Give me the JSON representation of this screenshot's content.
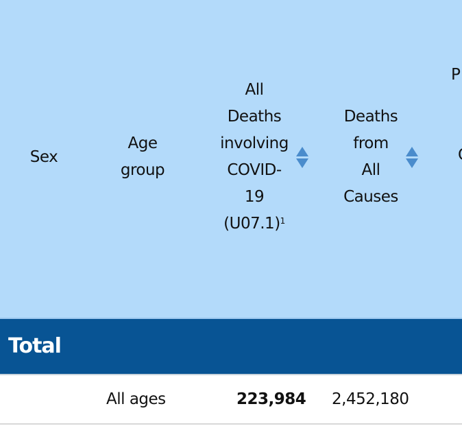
{
  "table": {
    "headers": {
      "sex": "Sex",
      "age_group": [
        "Age",
        "group"
      ],
      "covid_deaths": [
        "All",
        "Deaths",
        "involving",
        "COVID-",
        "19",
        "(U07.1)"
      ],
      "covid_footnote": "1",
      "all_causes": [
        "Deaths",
        "from",
        "All",
        "Causes"
      ],
      "partial_column": [
        "P",
        "C"
      ]
    },
    "sections": [
      {
        "label": "Total",
        "rows": [
          {
            "sex": "",
            "age_group": "All ages",
            "covid_deaths": "223,984",
            "all_causes": "2,452,180"
          }
        ]
      }
    ]
  }
}
